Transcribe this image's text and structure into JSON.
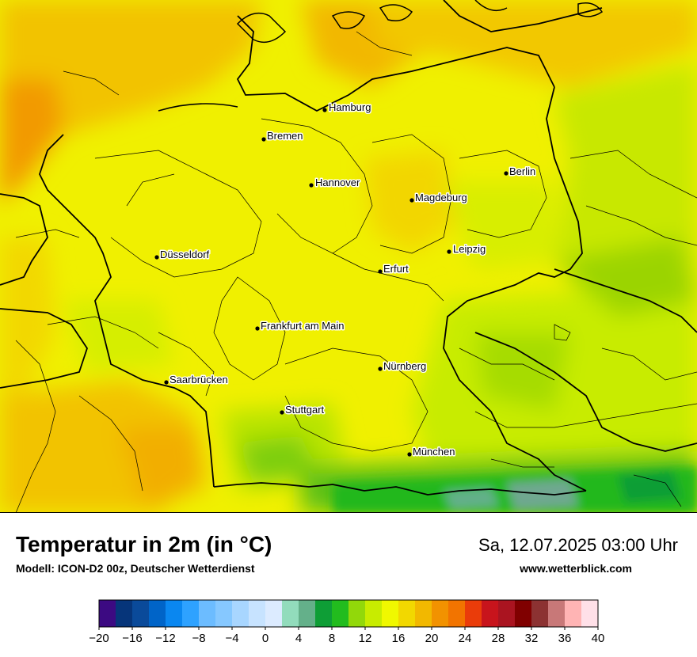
{
  "map": {
    "cities": [
      {
        "name": "Hamburg"
      },
      {
        "name": "Bremen"
      },
      {
        "name": "Berlin"
      },
      {
        "name": "Hannover"
      },
      {
        "name": "Magdeburg"
      },
      {
        "name": "Düsseldorf"
      },
      {
        "name": "Leipzig"
      },
      {
        "name": "Erfurt"
      },
      {
        "name": "Frankfurt am Main"
      },
      {
        "name": "Nürnberg"
      },
      {
        "name": "Saarbrücken"
      },
      {
        "name": "Stuttgart"
      },
      {
        "name": "München"
      }
    ],
    "colors": {
      "warm": "#f2c300",
      "mid": "#f0f000",
      "cool": "#c8e800",
      "cooler": "#9bd400",
      "green": "#22b81a",
      "alpine": "#70a890"
    }
  },
  "footer": {
    "title": "Temperatur in 2m (in °C)",
    "model": "Modell: ICON-D2 00z, Deutscher Wetterdienst",
    "datetime": "Sa, 12.07.2025 03:00 Uhr",
    "website": "www.wetterblick.com"
  },
  "scale": {
    "min": -20,
    "max": 40,
    "step": 2,
    "tick_labels": [
      "−20",
      "−16",
      "−12",
      "−8",
      "−4",
      "0",
      "4",
      "8",
      "12",
      "16",
      "20",
      "24",
      "28",
      "32",
      "36",
      "40"
    ],
    "colors": [
      "#3c0a82",
      "#06357a",
      "#0a4a9a",
      "#0064c8",
      "#0a87f0",
      "#2ea2ff",
      "#6cbcff",
      "#86c8ff",
      "#a8d6ff",
      "#c7e3ff",
      "#dcebff",
      "#92dcbc",
      "#64b08a",
      "#0e9e36",
      "#22bc1e",
      "#92d80a",
      "#c8ec00",
      "#f0f800",
      "#f2d800",
      "#f2b800",
      "#f29200",
      "#f27400",
      "#ea3c0a",
      "#c8141c",
      "#aa1420",
      "#800000",
      "#8c3232",
      "#c87878",
      "#ffb4b4",
      "#ffe0e8"
    ]
  }
}
